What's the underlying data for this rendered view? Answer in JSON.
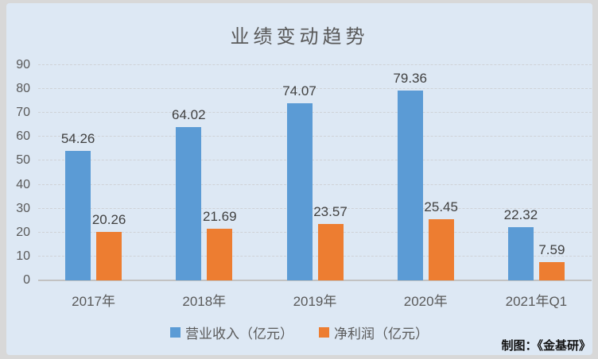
{
  "title": "业绩变动趋势",
  "credit": "制图：《金基研》",
  "colors": {
    "outer_background": "#d8d8d8",
    "card_background": "#dde8f4",
    "revenue_blue": "#5b9bd5",
    "profit_orange": "#ed7d31",
    "gridline": "#cfd2d6",
    "axis_line": "#c2c2c2",
    "axis_text": "#595959",
    "data_label_text": "#404040",
    "credit_text": "#111111"
  },
  "legend": [
    {
      "label": "营业收入（亿元）",
      "color": "#5b9bd5"
    },
    {
      "label": "净利润（亿元）",
      "color": "#ed7d31"
    }
  ],
  "chart_data": {
    "type": "bar",
    "title": "业绩变动趋势",
    "categories": [
      "2017年",
      "2018年",
      "2019年",
      "2020年",
      "2021年Q1"
    ],
    "series": [
      {
        "name": "营业收入（亿元）",
        "color": "#5b9bd5",
        "values": [
          54.26,
          64.02,
          74.07,
          79.36,
          22.32
        ]
      },
      {
        "name": "净利润（亿元）",
        "color": "#ed7d31",
        "values": [
          20.26,
          21.69,
          23.57,
          25.45,
          7.59
        ]
      }
    ],
    "xlabel": "",
    "ylabel": "",
    "ylim": [
      0,
      90
    ],
    "ytick_step": 10,
    "grid": true,
    "legend_position": "bottom",
    "data_labels": true
  }
}
